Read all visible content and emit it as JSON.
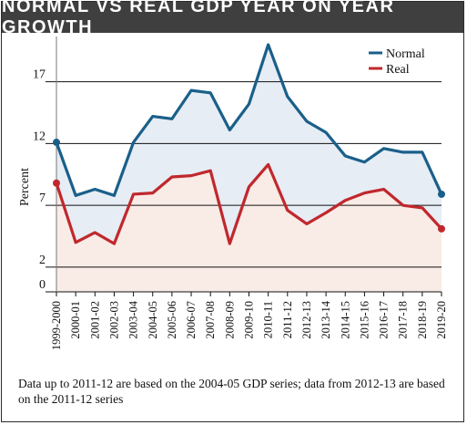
{
  "chart_data": {
    "type": "line",
    "title": "NORMAL VS REAL GDP YEAR ON YEAR GROWTH",
    "ylabel": "Percent",
    "xlabel": "",
    "ylim": [
      0,
      20
    ],
    "yticks": [
      0,
      2,
      7,
      12,
      17
    ],
    "categories": [
      "1999-2000",
      "2000-01",
      "2001-02",
      "2002-03",
      "2003-04",
      "2004-05",
      "2005-06",
      "2006-07",
      "2007-08",
      "2008-09",
      "2009-10",
      "2010-11",
      "2011-12",
      "2012-13",
      "2013-14",
      "2014-15",
      "2015-16",
      "2016-17",
      "2017-18",
      "2018-19",
      "2019-20"
    ],
    "series": [
      {
        "name": "Normal",
        "color": "#1a5f8a",
        "fill": "#e6edf5",
        "values": [
          12.1,
          7.8,
          8.3,
          7.8,
          12.1,
          14.2,
          14.0,
          16.3,
          16.1,
          13.1,
          15.2,
          20.0,
          15.8,
          13.8,
          12.9,
          11.0,
          10.5,
          11.6,
          11.3,
          11.3,
          7.9
        ]
      },
      {
        "name": "Real",
        "color": "#c0282d",
        "fill": "#f9ebe6",
        "values": [
          8.8,
          4.0,
          4.8,
          3.9,
          7.9,
          8.0,
          9.3,
          9.4,
          9.8,
          3.9,
          8.5,
          10.3,
          6.6,
          5.5,
          6.4,
          7.4,
          8.0,
          8.3,
          7.0,
          6.8,
          5.1
        ]
      }
    ],
    "grid": "horizontal",
    "legend_position": "top-right"
  },
  "footnote": "Data up to 2011-12 are based on the 2004-05 GDP series; data from 2012-13 are based on the 2011-12 series"
}
